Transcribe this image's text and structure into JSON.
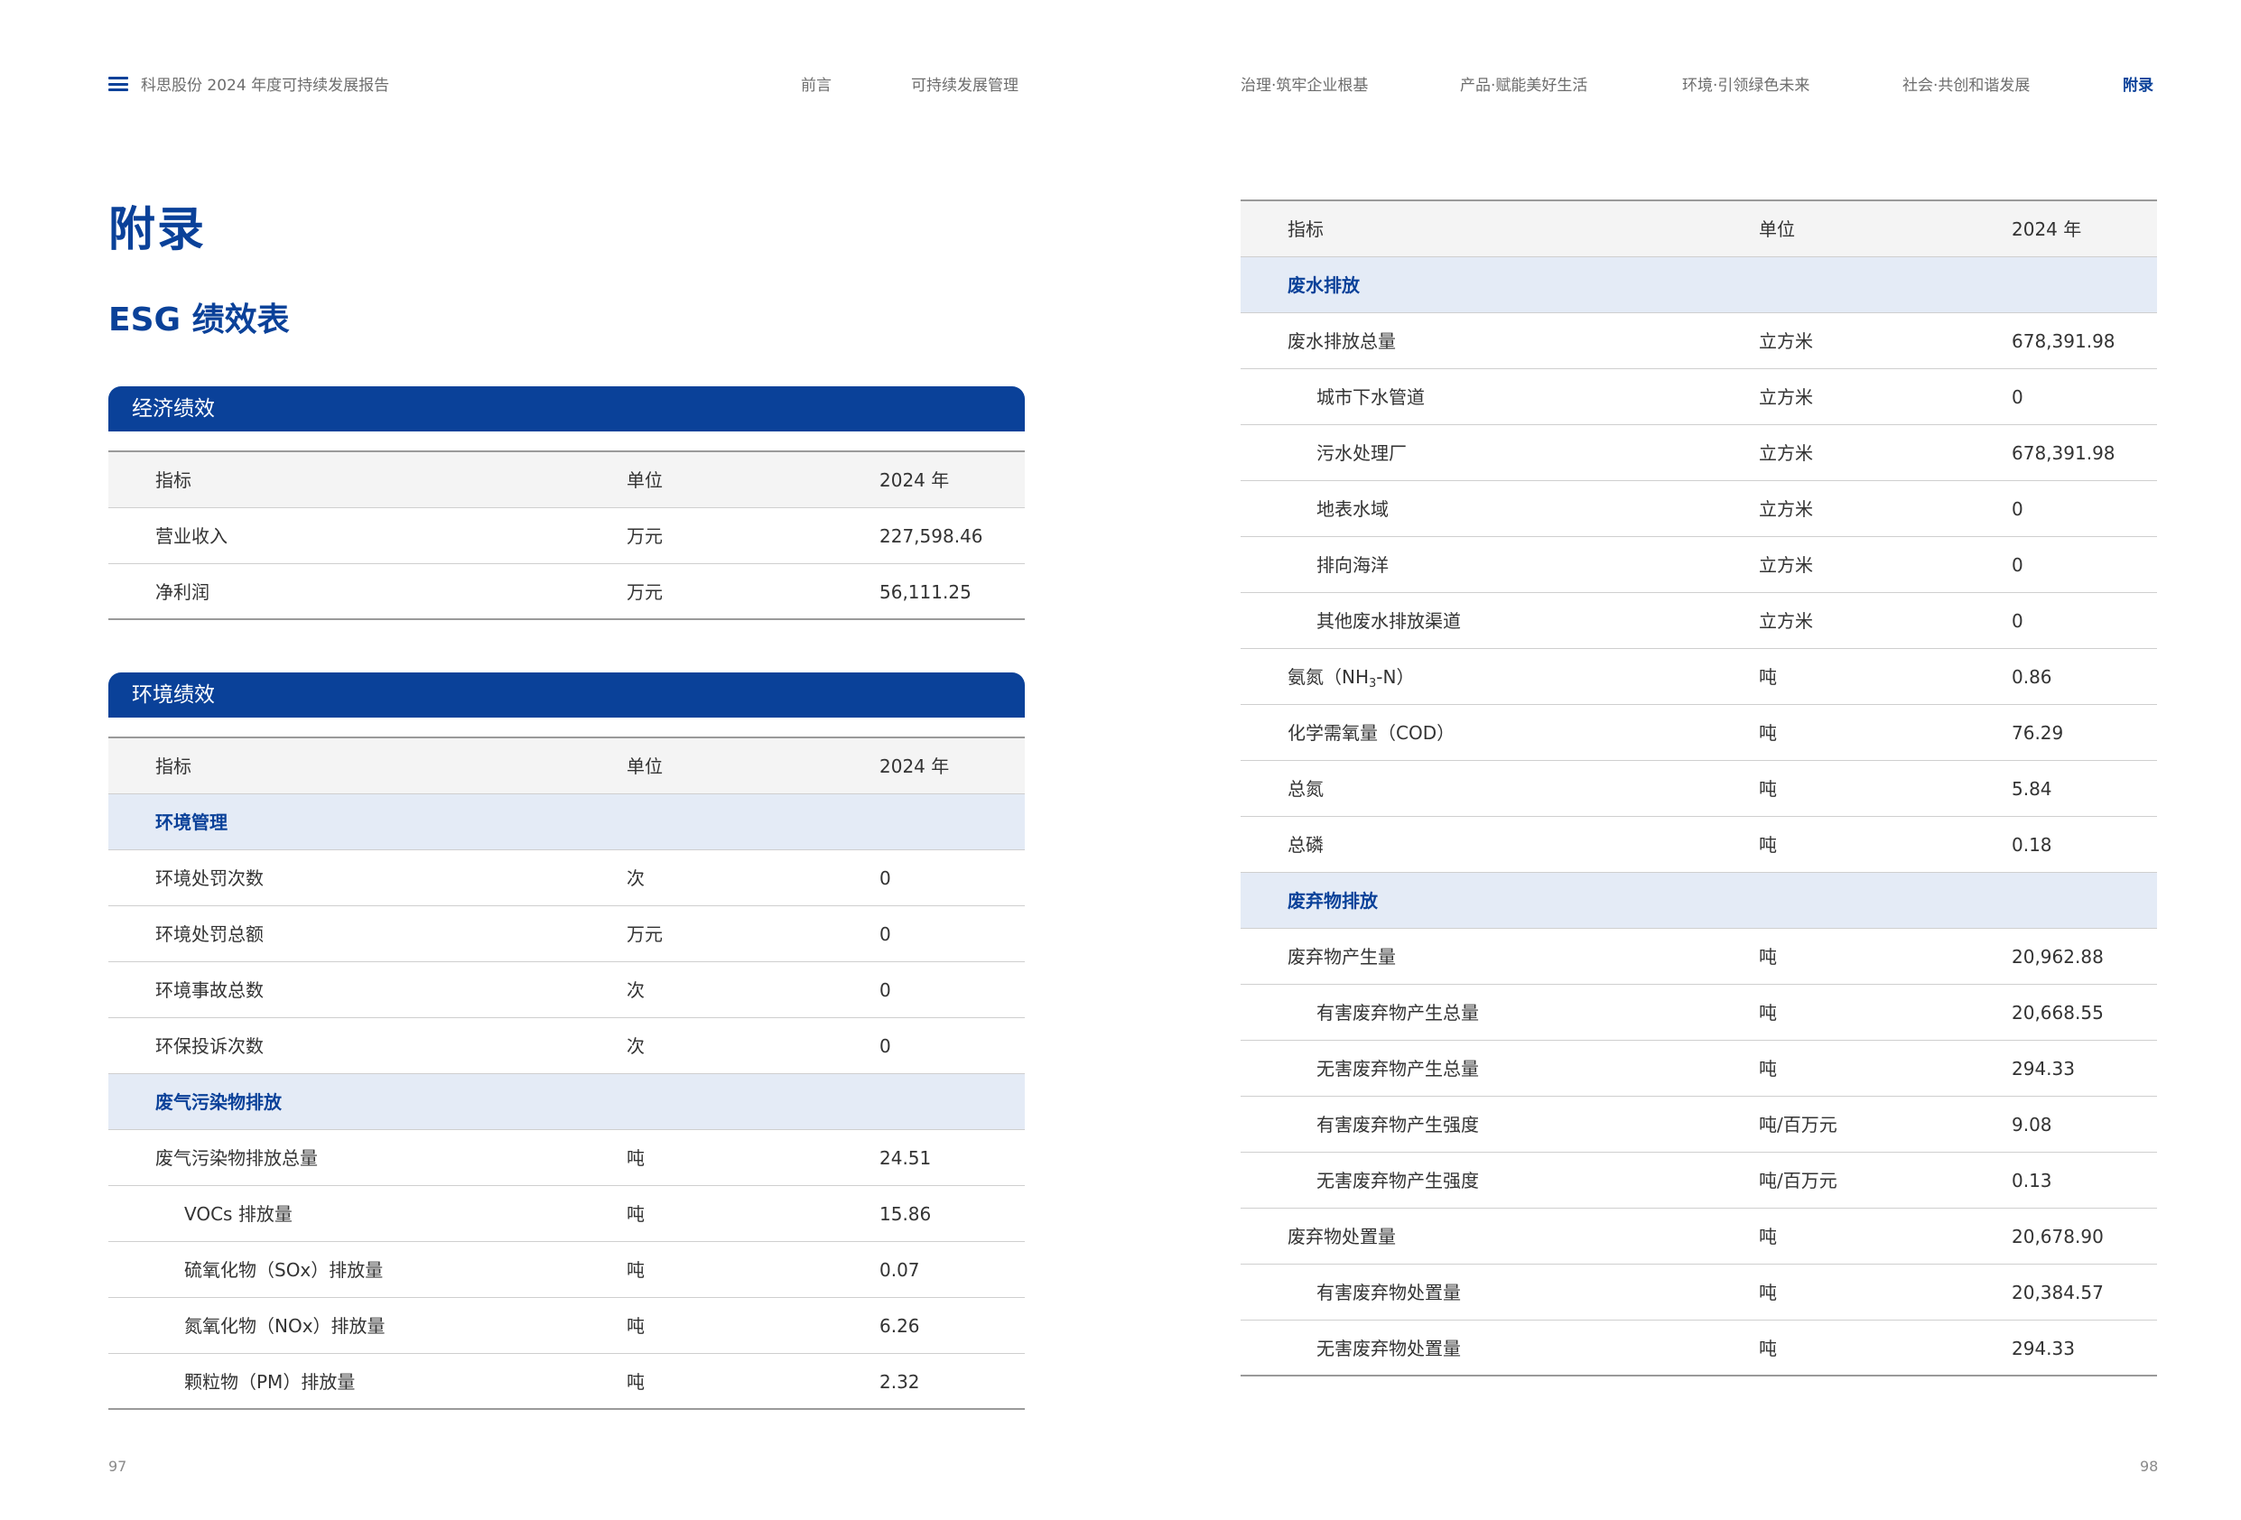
{
  "header": {
    "report_title": "科思股份 2024 年度可持续发展报告",
    "nav": [
      "前言",
      "可持续发展管理",
      "治理·筑牢企业根基",
      "产品·赋能美好生活",
      "环境·引领绿色未来",
      "社会·共创和谐发展",
      "附录"
    ]
  },
  "left_page": {
    "title": "附录",
    "subtitle": "ESG 绩效表",
    "page_number": "97",
    "economic": {
      "section": "经济绩效",
      "header": [
        "指标",
        "单位",
        "2024 年"
      ],
      "rows": [
        {
          "name": "营业收入",
          "unit": "万元",
          "value": "227,598.46"
        },
        {
          "name": "净利润",
          "unit": "万元",
          "value": "56,111.25"
        }
      ]
    },
    "environment": {
      "section": "环境绩效",
      "header": [
        "指标",
        "单位",
        "2024 年"
      ],
      "cat1": "环境管理",
      "rows1": [
        {
          "name": "环境处罚次数",
          "unit": "次",
          "value": "0"
        },
        {
          "name": "环境处罚总额",
          "unit": "万元",
          "value": "0"
        },
        {
          "name": "环境事故总数",
          "unit": "次",
          "value": "0"
        },
        {
          "name": "环保投诉次数",
          "unit": "次",
          "value": "0"
        }
      ],
      "cat2": "废气污染物排放",
      "rows2": [
        {
          "name": "废气污染物排放总量",
          "unit": "吨",
          "value": "24.51"
        },
        {
          "name": "VOCs 排放量",
          "unit": "吨",
          "value": "15.86"
        },
        {
          "name": "硫氧化物（SOx）排放量",
          "unit": "吨",
          "value": "0.07"
        },
        {
          "name": "氮氧化物（NOx）排放量",
          "unit": "吨",
          "value": "6.26"
        },
        {
          "name": "颗粒物（PM）排放量",
          "unit": "吨",
          "value": "2.32"
        }
      ]
    }
  },
  "right_page": {
    "page_number": "98",
    "header": [
      "指标",
      "单位",
      "2024 年"
    ],
    "cat1": "废水排放",
    "water_rows": [
      {
        "name": "废水排放总量",
        "unit": "立方米",
        "value": "678,391.98"
      },
      {
        "name": "城市下水管道",
        "unit": "立方米",
        "value": "0"
      },
      {
        "name": "污水处理厂",
        "unit": "立方米",
        "value": "678,391.98"
      },
      {
        "name": "地表水域",
        "unit": "立方米",
        "value": "0"
      },
      {
        "name": "排向海洋",
        "unit": "立方米",
        "value": "0"
      },
      {
        "name": "其他废水排放渠道",
        "unit": "立方米",
        "value": "0"
      }
    ],
    "ammonia": {
      "name_prefix": "氨氮（NH",
      "name_sub": "3",
      "name_suffix": "-N）",
      "unit": "吨",
      "value": "0.86"
    },
    "water_rows2": [
      {
        "name": "化学需氧量（COD）",
        "unit": "吨",
        "value": "76.29"
      },
      {
        "name": "总氮",
        "unit": "吨",
        "value": "5.84"
      },
      {
        "name": "总磷",
        "unit": "吨",
        "value": "0.18"
      }
    ],
    "cat2": "废弃物排放",
    "waste_rows": [
      {
        "name": "废弃物产生量",
        "unit": "吨",
        "value": "20,962.88"
      },
      {
        "name": "有害废弃物产生总量",
        "unit": "吨",
        "value": "20,668.55"
      },
      {
        "name": "无害废弃物产生总量",
        "unit": "吨",
        "value": "294.33"
      },
      {
        "name": "有害废弃物产生强度",
        "unit": "吨/百万元",
        "value": "9.08"
      },
      {
        "name": "无害废弃物产生强度",
        "unit": "吨/百万元",
        "value": "0.13"
      },
      {
        "name": "废弃物处置量",
        "unit": "吨",
        "value": "20,678.90"
      },
      {
        "name": "有害废弃物处置量",
        "unit": "吨",
        "value": "20,384.57"
      },
      {
        "name": "无害废弃物处置量",
        "unit": "吨",
        "value": "294.33"
      }
    ]
  }
}
